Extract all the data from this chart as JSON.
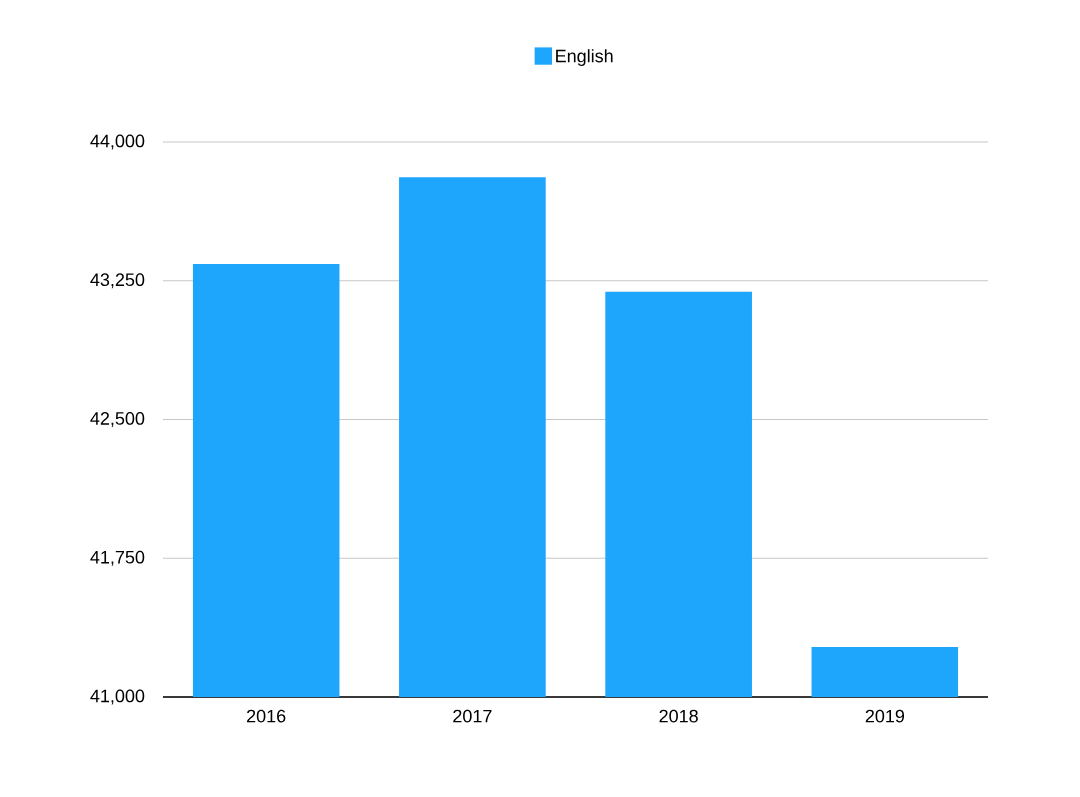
{
  "chart_data": {
    "type": "bar",
    "categories": [
      "2016",
      "2017",
      "2018",
      "2019"
    ],
    "series": [
      {
        "name": "English",
        "color": "#1ea5fc",
        "values": [
          43340,
          43810,
          43190,
          41270
        ]
      }
    ],
    "ylim": [
      41000,
      44000
    ],
    "yticks": [
      {
        "value": 41000,
        "label": "41,000"
      },
      {
        "value": 41750,
        "label": "41,750"
      },
      {
        "value": 42500,
        "label": "42,500"
      },
      {
        "value": 43250,
        "label": "43,250"
      },
      {
        "value": 44000,
        "label": "44,000"
      }
    ],
    "grid": "y",
    "legend": "top"
  }
}
